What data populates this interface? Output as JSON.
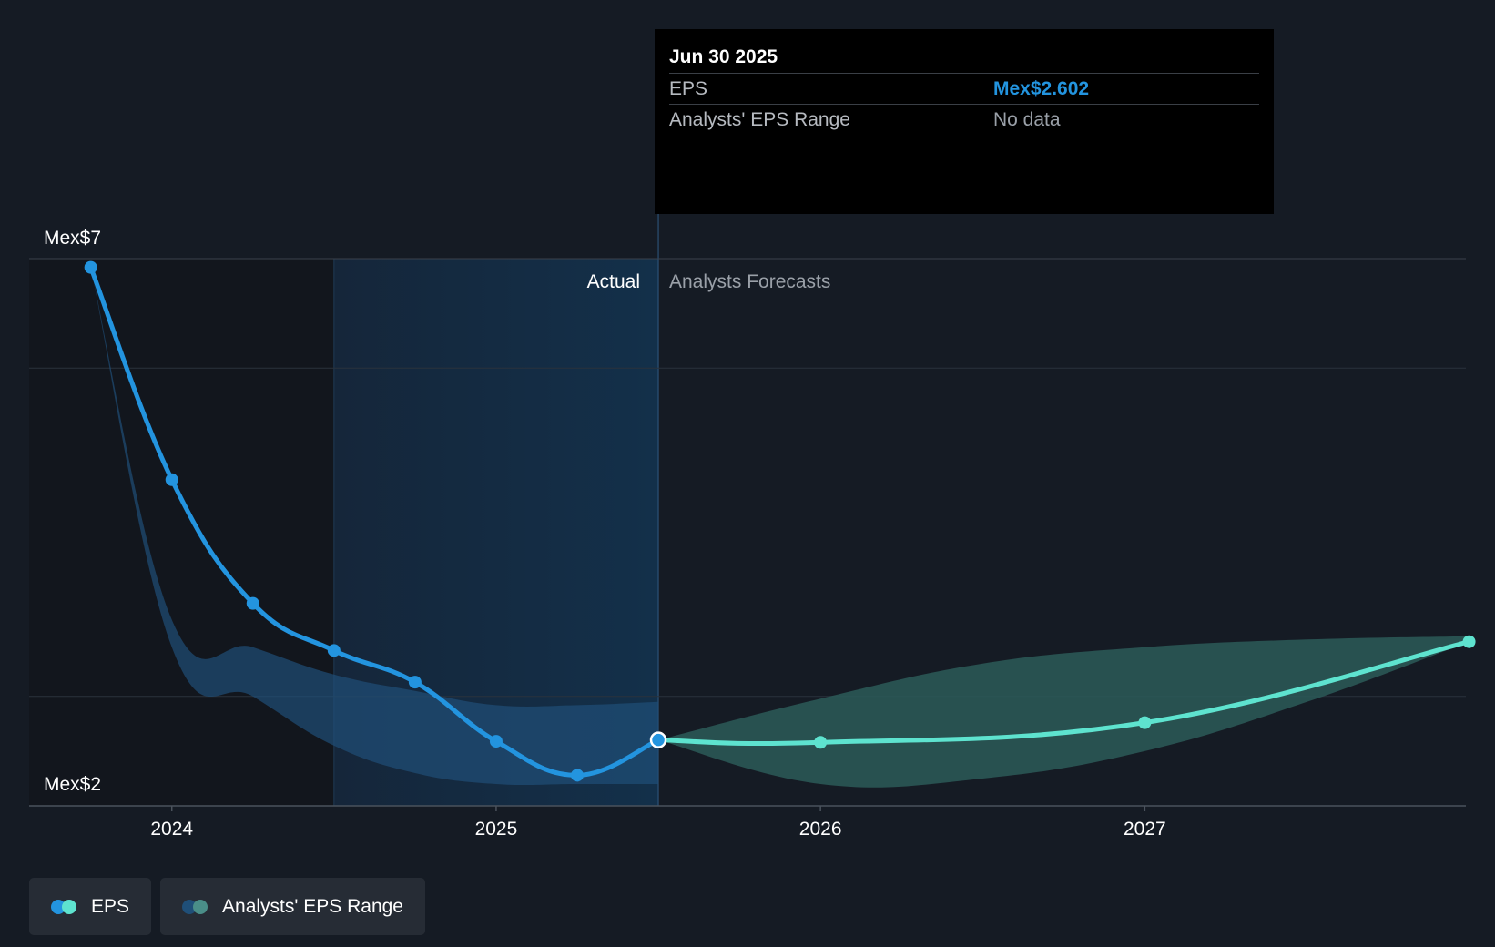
{
  "colors": {
    "background": "#151b24",
    "eps_actual": "#2394df",
    "eps_forecast": "#5ee3cf",
    "range_actual": "#1f4f78",
    "range_forecast": "#2c5a58",
    "actual_highlight": "#13304a",
    "gridline": "#2a323c"
  },
  "tooltip": {
    "date": "Jun 30 2025",
    "rows": [
      {
        "key": "EPS",
        "value": "Mex$2.602"
      },
      {
        "key": "Analysts' EPS Range",
        "value": "No data"
      }
    ]
  },
  "legend": [
    {
      "label": "EPS",
      "icon": "eps-legend-icon"
    },
    {
      "label": "Analysts' EPS Range",
      "icon": "range-legend-icon"
    }
  ],
  "chart_data": {
    "type": "line",
    "ylim": [
      2,
      7
    ],
    "y_axis_labels": [
      "Mex$7",
      "Mex$2"
    ],
    "x_ticks": [
      {
        "label": "2024",
        "x": 2024.0
      },
      {
        "label": "2025",
        "x": 2025.0
      },
      {
        "label": "2026",
        "x": 2026.0
      },
      {
        "label": "2027",
        "x": 2027.0
      }
    ],
    "xlim": [
      2023.56,
      2027.99
    ],
    "divider_x": 2025.5,
    "highlight_start_x": 2024.5,
    "region_labels": {
      "actual": "Actual",
      "forecast": "Analysts Forecasts"
    },
    "series": [
      {
        "name": "EPS",
        "kind": "actual",
        "x": [
          2023.75,
          2024.0,
          2024.25,
          2024.5,
          2024.75,
          2025.0,
          2025.25,
          2025.5
        ],
        "y": [
          6.92,
          4.98,
          3.85,
          3.42,
          3.13,
          2.59,
          2.28,
          2.602
        ]
      },
      {
        "name": "EPS",
        "kind": "forecast",
        "x": [
          2025.5,
          2026.0,
          2027.0,
          2028.0
        ],
        "y": [
          2.602,
          2.58,
          2.76,
          3.5
        ]
      }
    ],
    "range_actual": {
      "x": [
        2023.75,
        2024.0,
        2024.25,
        2024.5,
        2024.75,
        2025.0,
        2025.25,
        2025.5
      ],
      "low": [
        6.92,
        3.45,
        3.0,
        2.55,
        2.3,
        2.2,
        2.2,
        2.2
      ],
      "high": [
        6.92,
        3.7,
        3.45,
        3.2,
        3.05,
        2.92,
        2.92,
        2.95
      ]
    },
    "range_forecast": {
      "x": [
        2025.5,
        2026.0,
        2026.5,
        2027.0,
        2027.5,
        2028.0
      ],
      "low": [
        2.602,
        2.2,
        2.25,
        2.5,
        2.95,
        3.5
      ],
      "high": [
        2.602,
        2.98,
        3.3,
        3.45,
        3.52,
        3.55
      ]
    },
    "highlight_point": {
      "x": 2025.5,
      "y": 2.602
    }
  }
}
